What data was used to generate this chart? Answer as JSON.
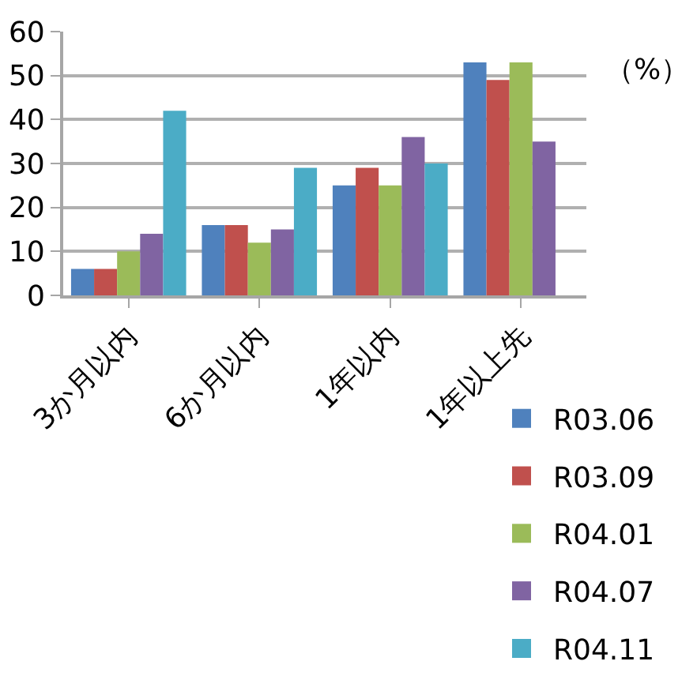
{
  "chart_data": {
    "type": "bar",
    "categories": [
      "3か月以内",
      "6か月以内",
      "1年以内",
      "1年以上先"
    ],
    "series": [
      {
        "name": "R03.06",
        "color": "#4f81bd",
        "values": [
          6,
          16,
          25,
          53
        ]
      },
      {
        "name": "R03.09",
        "color": "#c0504d",
        "values": [
          6,
          16,
          29,
          49
        ]
      },
      {
        "name": "R04.01",
        "color": "#9bbb59",
        "values": [
          10,
          12,
          25,
          53
        ]
      },
      {
        "name": "R04.07",
        "color": "#8064a2",
        "values": [
          14,
          15,
          36,
          35
        ]
      },
      {
        "name": "R04.11",
        "color": "#4bacc6",
        "values": [
          42,
          29,
          30,
          0
        ]
      }
    ],
    "ylim": [
      0,
      60
    ],
    "yticks": [
      0,
      10,
      20,
      30,
      40,
      50,
      60
    ],
    "annotations": [
      "（%）"
    ],
    "grid": "y",
    "legend": "bottom right"
  }
}
